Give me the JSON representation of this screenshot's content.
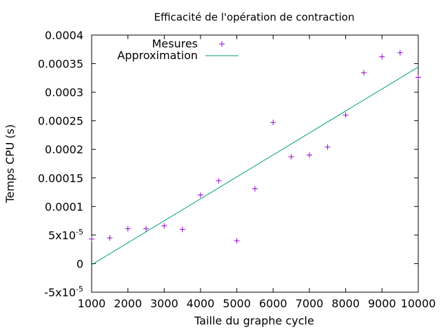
{
  "chart_data": {
    "type": "scatter",
    "title": "Efficacité de l'opération de contraction",
    "xlabel": "Taille du graphe cycle",
    "ylabel": "Temps CPU (s)",
    "xlim": [
      1000,
      10000
    ],
    "ylim": [
      -5e-05,
      0.0004
    ],
    "x_ticks": [
      {
        "value": 1000,
        "label": "1000"
      },
      {
        "value": 2000,
        "label": "2000"
      },
      {
        "value": 3000,
        "label": "3000"
      },
      {
        "value": 4000,
        "label": "4000"
      },
      {
        "value": 5000,
        "label": "5000"
      },
      {
        "value": 6000,
        "label": "6000"
      },
      {
        "value": 7000,
        "label": "7000"
      },
      {
        "value": 8000,
        "label": "8000"
      },
      {
        "value": 9000,
        "label": "9000"
      },
      {
        "value": 10000,
        "label": "10000"
      }
    ],
    "y_ticks": [
      {
        "value": -5e-05,
        "label": "-5x10",
        "exp": "-5"
      },
      {
        "value": 0,
        "label": "0",
        "exp": ""
      },
      {
        "value": 5e-05,
        "label": "5x10",
        "exp": "-5"
      },
      {
        "value": 0.0001,
        "label": "0.0001",
        "exp": ""
      },
      {
        "value": 0.00015,
        "label": "0.00015",
        "exp": ""
      },
      {
        "value": 0.0002,
        "label": "0.0002",
        "exp": ""
      },
      {
        "value": 0.00025,
        "label": "0.00025",
        "exp": ""
      },
      {
        "value": 0.0003,
        "label": "0.0003",
        "exp": ""
      },
      {
        "value": 0.00035,
        "label": "0.00035",
        "exp": ""
      },
      {
        "value": 0.0004,
        "label": "0.0004",
        "exp": ""
      }
    ],
    "legend_position": "top-left",
    "grid": false,
    "series": [
      {
        "name": "Mesures",
        "kind": "scatter",
        "marker": "+",
        "color": "#9400d3",
        "x": [
          1000,
          1500,
          2000,
          2500,
          3000,
          3500,
          4000,
          4500,
          5000,
          5500,
          6000,
          6500,
          7000,
          7500,
          8000,
          8500,
          9000,
          9500,
          10000
        ],
        "y": [
          4.3e-05,
          4.5e-05,
          6.1e-05,
          6.1e-05,
          6.6e-05,
          6e-05,
          0.00012,
          0.000145,
          4e-05,
          0.000131,
          0.000247,
          0.000187,
          0.00019,
          0.000204,
          0.00026,
          0.000334,
          0.000362,
          0.000369,
          0.000326
        ]
      },
      {
        "name": "Approximation",
        "kind": "line",
        "color": "#009e73",
        "x": [
          1000,
          10000
        ],
        "y": [
          -2e-06,
          0.000344
        ]
      }
    ]
  }
}
